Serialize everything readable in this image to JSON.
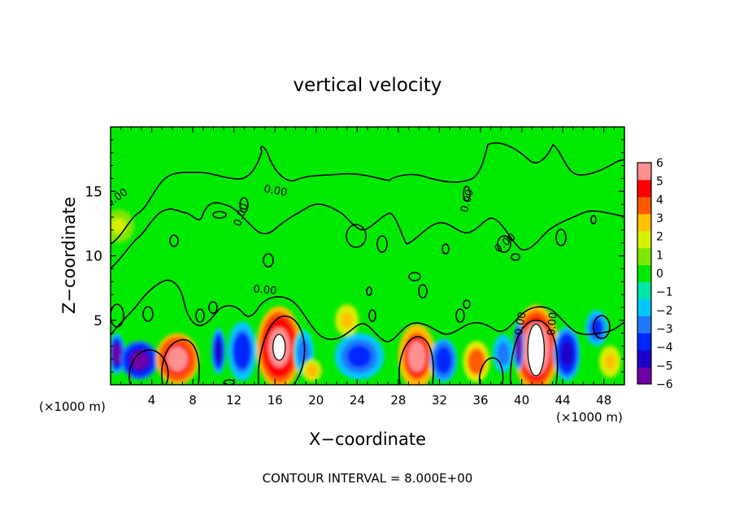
{
  "chart_data": {
    "type": "heatmap",
    "title": "vertical velocity",
    "xlabel": "X−coordinate",
    "ylabel": "Z−coordinate",
    "x_unit_left": "(×1000 m)",
    "x_unit_right": "(×1000 m)",
    "xlim": [
      0,
      50
    ],
    "ylim": [
      0,
      20
    ],
    "x_ticks": [
      4,
      8,
      12,
      16,
      20,
      24,
      28,
      32,
      36,
      40,
      44,
      48
    ],
    "y_ticks": [
      5,
      10,
      15
    ],
    "colorbar": {
      "min": -6,
      "max": 6,
      "tick_values": [
        6,
        5,
        4,
        3,
        2,
        1,
        0,
        -1,
        -2,
        -3,
        -4,
        -5,
        -6
      ],
      "tick_labels": [
        "6",
        "5",
        "4",
        "3",
        "2",
        "1",
        "0",
        "−1",
        "−2",
        "−3",
        "−4",
        "−5",
        "−6"
      ],
      "colors": [
        "#7000a8",
        "#1a00c8",
        "#0026ff",
        "#1e78ff",
        "#00c8ff",
        "#00e4a8",
        "#00e800",
        "#7ce800",
        "#d8f000",
        "#ffc000",
        "#ff5a00",
        "#ff0000",
        "#ff9090"
      ]
    },
    "contour_labels": [
      {
        "text": "0.00",
        "x": 0.8,
        "z": 14.3,
        "angle": -35
      },
      {
        "text": "0.00",
        "x": 13.0,
        "z": 13.1,
        "angle": -70
      },
      {
        "text": "0.00",
        "x": 16.0,
        "z": 14.8,
        "angle": 10
      },
      {
        "text": "0.00",
        "x": 15.0,
        "z": 7.1,
        "angle": 5
      },
      {
        "text": "0.00",
        "x": 35.0,
        "z": 14.2,
        "angle": -75
      },
      {
        "text": "0.00",
        "x": 38.6,
        "z": 10.8,
        "angle": -40
      },
      {
        "text": "0.00",
        "x": 40.2,
        "z": 4.7,
        "angle": -80
      },
      {
        "text": "0.00",
        "x": 43.3,
        "z": 4.7,
        "angle": -85
      }
    ],
    "features": [
      {
        "x": 0.6,
        "z": 2.4,
        "rx": 0.8,
        "rz": 1.6,
        "value": -5.2
      },
      {
        "x": 2.8,
        "z": 1.9,
        "rx": 1.8,
        "rz": 1.5,
        "value": -5.6
      },
      {
        "x": 6.5,
        "z": 2.0,
        "rx": 2.1,
        "rz": 2.0,
        "value": 5.6
      },
      {
        "x": 10.5,
        "z": 2.6,
        "rx": 0.7,
        "rz": 1.8,
        "value": -4.8
      },
      {
        "x": 12.8,
        "z": 2.6,
        "rx": 1.4,
        "rz": 2.3,
        "value": -3.8
      },
      {
        "x": 16.4,
        "z": 2.9,
        "rx": 2.2,
        "rz": 3.2,
        "value": 5.9
      },
      {
        "x": 18.8,
        "z": 2.5,
        "rx": 1.0,
        "rz": 1.8,
        "value": -2.9
      },
      {
        "x": 19.6,
        "z": 1.1,
        "rx": 1.0,
        "rz": 0.9,
        "value": 2.9
      },
      {
        "x": 24.2,
        "z": 2.2,
        "rx": 2.4,
        "rz": 1.8,
        "value": -3.6
      },
      {
        "x": 23.0,
        "z": 5.0,
        "rx": 1.2,
        "rz": 1.3,
        "value": 2.4
      },
      {
        "x": 29.8,
        "z": 2.2,
        "rx": 1.8,
        "rz": 2.5,
        "value": 5.4
      },
      {
        "x": 32.4,
        "z": 1.9,
        "rx": 1.3,
        "rz": 1.7,
        "value": -4.1
      },
      {
        "x": 35.6,
        "z": 1.8,
        "rx": 1.3,
        "rz": 1.6,
        "value": 3.8
      },
      {
        "x": 38.2,
        "z": 2.4,
        "rx": 1.0,
        "rz": 1.5,
        "value": -3.2
      },
      {
        "x": 41.4,
        "z": 2.8,
        "rx": 2.2,
        "rz": 3.4,
        "value": 6.0
      },
      {
        "x": 39.7,
        "z": 3.0,
        "rx": 0.5,
        "rz": 1.9,
        "value": -5.2
      },
      {
        "x": 44.4,
        "z": 2.4,
        "rx": 1.3,
        "rz": 2.1,
        "value": -4.6
      },
      {
        "x": 47.3,
        "z": 4.4,
        "rx": 1.1,
        "rz": 1.4,
        "value": -3.7
      },
      {
        "x": 48.6,
        "z": 1.8,
        "rx": 1.1,
        "rz": 1.3,
        "value": 2.4
      },
      {
        "x": 0.8,
        "z": 12.3,
        "rx": 1.5,
        "rz": 1.3,
        "value": 1.4
      }
    ],
    "extrema_ellipses": [
      {
        "x": 16.4,
        "z": 2.9,
        "rx": 0.6,
        "rz": 1.0
      },
      {
        "x": 41.4,
        "z": 2.7,
        "rx": 0.8,
        "rz": 2.0
      }
    ]
  },
  "footer": {
    "contour_interval": "CONTOUR INTERVAL = 8.000E+00"
  }
}
